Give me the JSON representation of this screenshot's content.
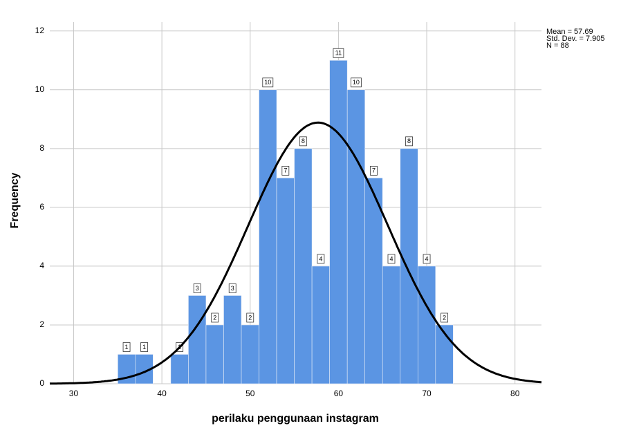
{
  "chart_data": {
    "type": "histogram",
    "x_label": "perilaku penggunaan instagram",
    "y_label": "Frequency",
    "bins": [
      35,
      37,
      39,
      41,
      43,
      45,
      47,
      49,
      51,
      53,
      55,
      57,
      59,
      61,
      63,
      65,
      67,
      69,
      71,
      73
    ],
    "values": [
      1,
      1,
      0,
      1,
      3,
      2,
      3,
      2,
      10,
      7,
      8,
      4,
      11,
      10,
      7,
      4,
      8,
      4,
      2
    ],
    "color": "#5b95e3",
    "xlim": [
      27.3,
      83
    ],
    "xticks": [
      30,
      40,
      50,
      60,
      70,
      80
    ],
    "ylim": [
      0,
      12.3
    ],
    "yticks": [
      0,
      2,
      4,
      6,
      8,
      10,
      12
    ],
    "grid": true,
    "normal_curve": {
      "mean": {
        "value": 57.69,
        "label": "Mean = 57.69"
      },
      "sd": {
        "value": 7.905,
        "label": "Std. Dev. = 7.905"
      },
      "n": {
        "value": 88,
        "label": "N = 88"
      },
      "color": "#000000"
    }
  }
}
